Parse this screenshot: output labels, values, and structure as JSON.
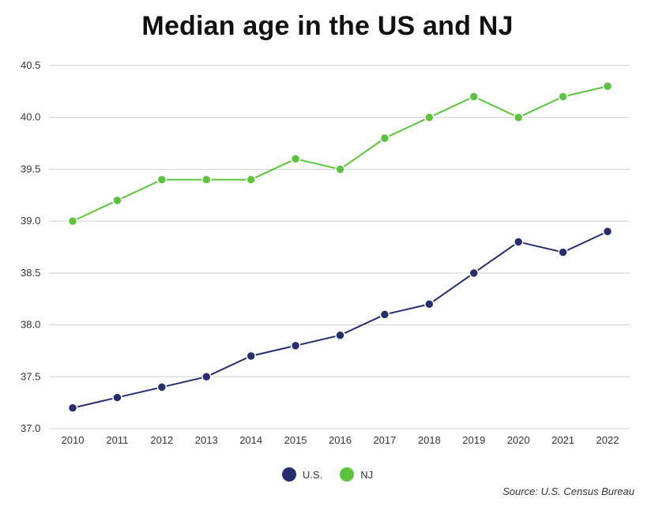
{
  "chart_data": {
    "type": "line",
    "title": "Median age in the US and NJ",
    "xlabel": "",
    "ylabel": "",
    "x": [
      "2010",
      "2011",
      "2012",
      "2013",
      "2014",
      "2015",
      "2016",
      "2017",
      "2018",
      "2019",
      "2020",
      "2021",
      "2022"
    ],
    "ylim": [
      37.0,
      40.5
    ],
    "yticks": [
      "37.0",
      "37.5",
      "38.0",
      "38.5",
      "39.0",
      "39.5",
      "40.0",
      "40.5"
    ],
    "grid": "horizontal",
    "legend_position": "bottom-center",
    "series": [
      {
        "name": "U.S.",
        "color": "#262e6e",
        "values": [
          37.2,
          37.3,
          37.4,
          37.5,
          37.7,
          37.8,
          37.9,
          38.1,
          38.2,
          38.5,
          38.8,
          38.7,
          38.9
        ]
      },
      {
        "name": "NJ",
        "color": "#5bc43c",
        "values": [
          39.0,
          39.2,
          39.4,
          39.4,
          39.4,
          39.6,
          39.5,
          39.8,
          40.0,
          40.2,
          40.0,
          40.2,
          40.3
        ]
      }
    ],
    "source": "Source: U.S. Census Bureau"
  },
  "colors": {
    "grid": "#cfcfcf",
    "text": "#333333"
  }
}
